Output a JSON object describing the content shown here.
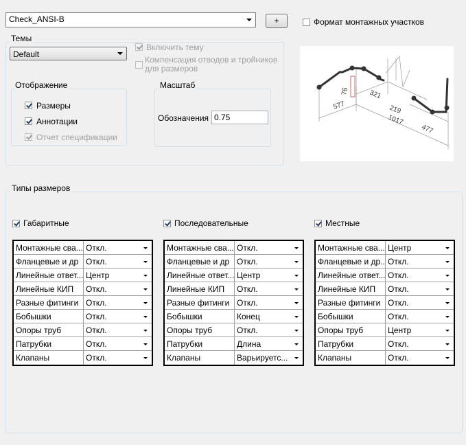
{
  "style_dropdown": "Check_ANSI-B",
  "add_button": "+",
  "montage_format": {
    "label": "Формат монтажных участков",
    "checked": false
  },
  "themes": {
    "title": "Темы",
    "dropdown": "Default",
    "enable_theme": {
      "label": "Включить тему",
      "checked": true
    },
    "compensation": {
      "label": "Компенсация отводов и тройников для размеров",
      "checked": false
    }
  },
  "display": {
    "title": "Отображение",
    "items": [
      {
        "label": "Размеры",
        "checked": true,
        "enabled": true
      },
      {
        "label": "Аннотации",
        "checked": true,
        "enabled": true
      },
      {
        "label": "Отчет спецификации",
        "checked": true,
        "enabled": false
      }
    ]
  },
  "scale": {
    "title": "Масштаб",
    "label": "Обозначения",
    "value": "0.75"
  },
  "preview": {
    "labels": [
      "76",
      "321",
      "577",
      "219",
      "1017",
      "477"
    ]
  },
  "dimension_types": {
    "title": "Типы размеров",
    "groups": [
      {
        "label": "Габаритные",
        "checked": true,
        "rows": [
          [
            "Монтажные сва...",
            "Откл."
          ],
          [
            "Фланцевые и др",
            "Откл."
          ],
          [
            "Линейные ответ...",
            "Центр"
          ],
          [
            "Линейные КИП",
            "Откл."
          ],
          [
            "Разные фитинги",
            "Откл."
          ],
          [
            "Бобышки",
            "Откл."
          ],
          [
            "Опоры труб",
            "Откл."
          ],
          [
            "Патрубки",
            "Откл."
          ],
          [
            "Клапаны",
            "Откл."
          ]
        ]
      },
      {
        "label": "Последовательные",
        "checked": true,
        "rows": [
          [
            "Монтажные сва...",
            "Откл."
          ],
          [
            "Фланцевые и др",
            "Откл."
          ],
          [
            "Линейные ответ...",
            "Центр"
          ],
          [
            "Линейные КИП",
            "Откл."
          ],
          [
            "Разные фитинги",
            "Откл."
          ],
          [
            "Бобышки",
            "Конец"
          ],
          [
            "Опоры труб",
            "Откл."
          ],
          [
            "Патрубки",
            "Длина"
          ],
          [
            "Клапаны",
            "Варьируетс..."
          ]
        ]
      },
      {
        "label": "Местные",
        "checked": true,
        "rows": [
          [
            "Монтажные сва...",
            "Центр"
          ],
          [
            "Фланцевые и др...",
            "Откл."
          ],
          [
            "Линейные ответ...",
            "Откл."
          ],
          [
            "Линейные КИП",
            "Откл."
          ],
          [
            "Разные фитинги",
            "Откл."
          ],
          [
            "Бобышки",
            "Откл."
          ],
          [
            "Опоры труб",
            "Центр"
          ],
          [
            "Патрубки",
            "Откл."
          ],
          [
            "Клапаны",
            "Откл."
          ]
        ]
      }
    ]
  }
}
